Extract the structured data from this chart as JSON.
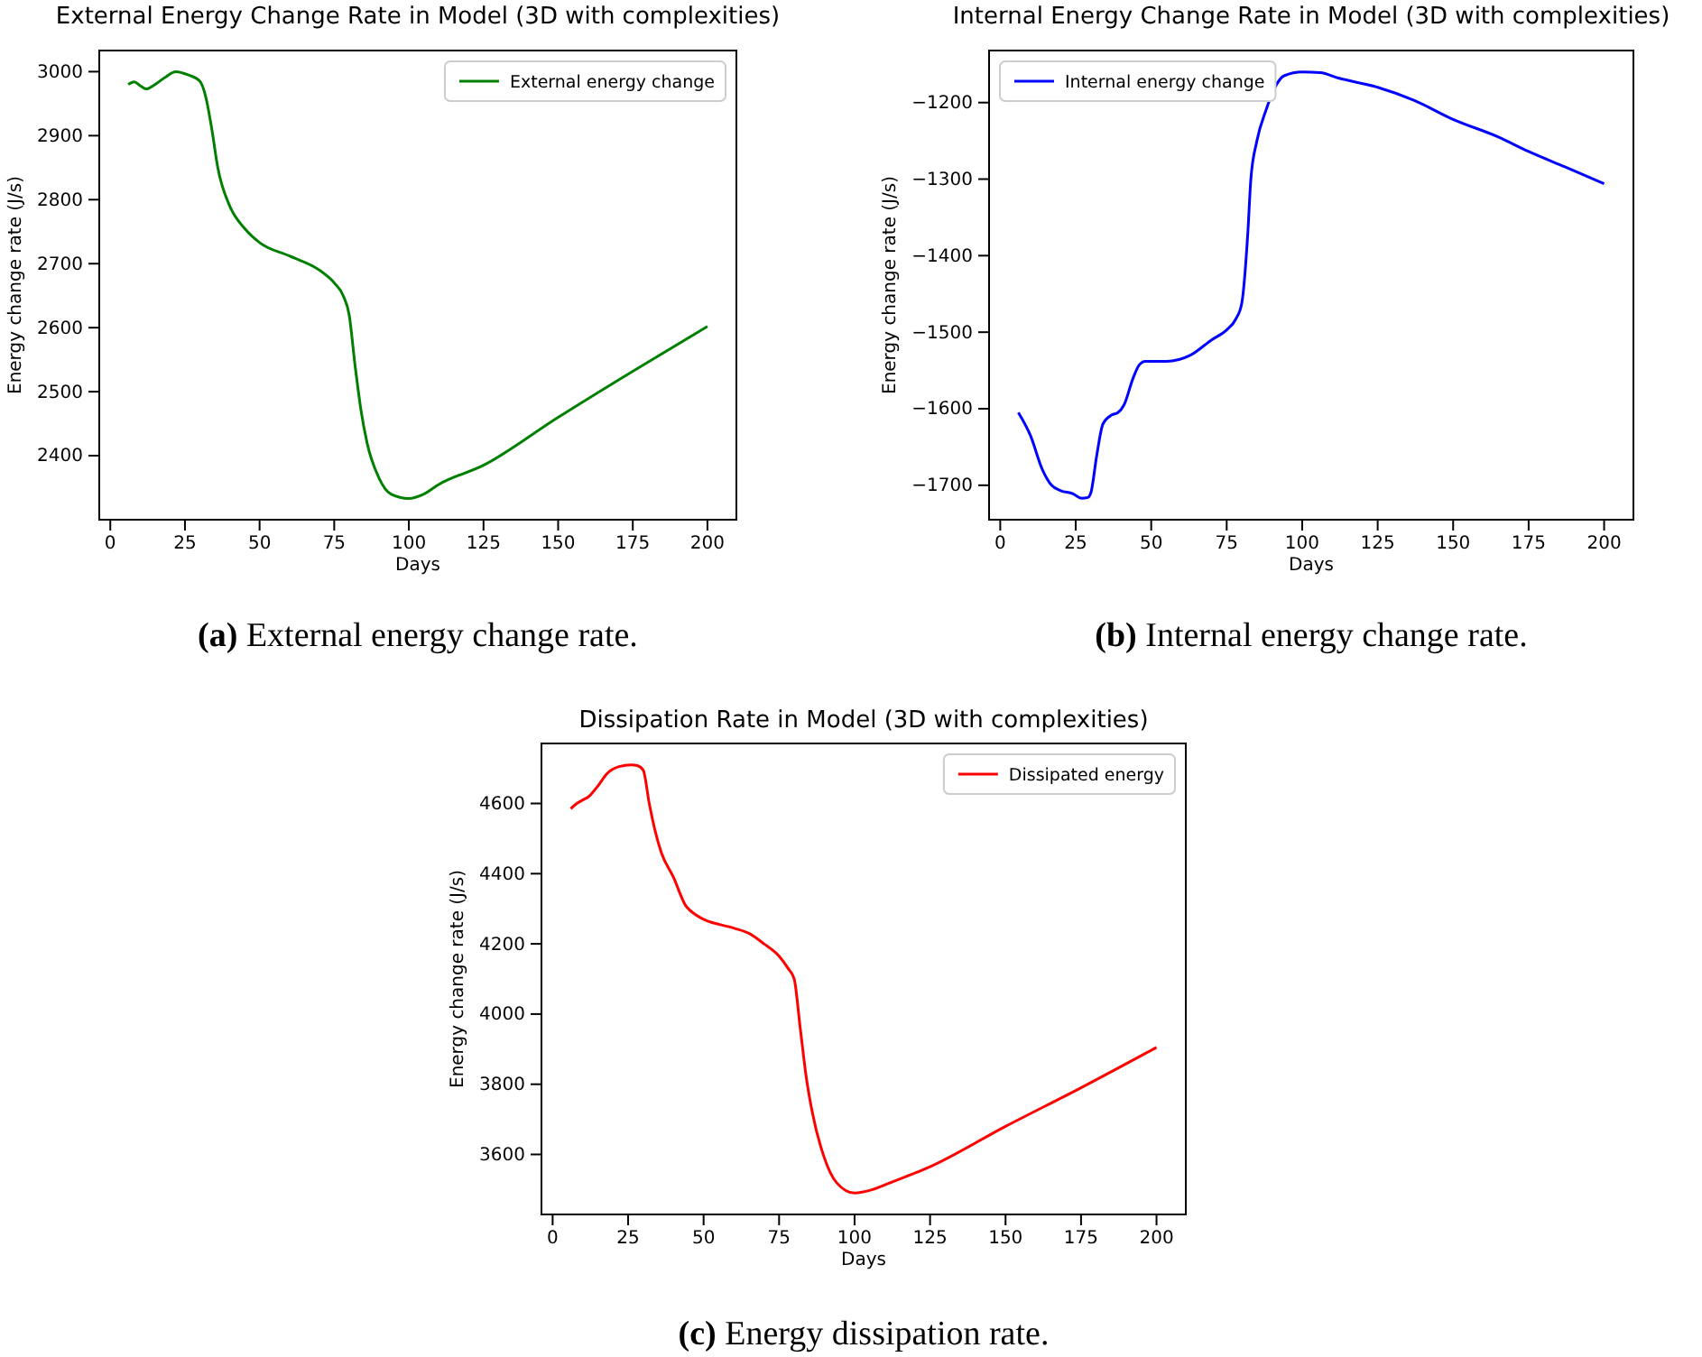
{
  "chart_data": [
    {
      "type": "line",
      "title": "External Energy Change Rate in Model (3D with complexities)",
      "xlabel": "Days",
      "ylabel": "Energy change rate (J/s)",
      "legend": "top right",
      "xlim": [
        -3.7,
        209.7
      ],
      "ylim": [
        2300,
        3033
      ],
      "xticks": [
        0,
        25,
        50,
        75,
        100,
        125,
        150,
        175,
        200
      ],
      "yticks": [
        2400,
        2500,
        2600,
        2700,
        2800,
        2900,
        3000
      ],
      "annotations": [
        "(a) External energy change rate."
      ],
      "x": [
        6,
        8,
        10,
        12,
        15,
        18,
        22,
        26,
        30,
        32,
        34,
        36,
        40,
        45,
        50,
        60,
        70,
        75,
        78,
        80,
        82,
        84,
        86,
        90,
        94,
        100,
        105,
        110,
        125,
        150,
        175,
        200
      ],
      "series": [
        {
          "name": "External energy change",
          "color": "#008000",
          "values": [
            2980,
            2984,
            2978,
            2973,
            2980,
            2990,
            3000,
            2995,
            2985,
            2960,
            2910,
            2850,
            2790,
            2755,
            2733,
            2712,
            2690,
            2670,
            2650,
            2620,
            2540,
            2470,
            2420,
            2365,
            2340,
            2333,
            2340,
            2355,
            2385,
            2460,
            2532,
            2602
          ]
        }
      ]
    },
    {
      "type": "line",
      "title": "Internal Energy Change Rate in Model (3D with complexities)",
      "xlabel": "Days",
      "ylabel": "Energy change rate (J/s)",
      "legend": "top left",
      "xlim": [
        -3.7,
        209.7
      ],
      "ylim": [
        -1745,
        -1132
      ],
      "xticks": [
        0,
        25,
        50,
        75,
        100,
        125,
        150,
        175,
        200
      ],
      "yticks": [
        {
          "value": -1700,
          "label": "−1700"
        },
        {
          "value": -1600,
          "label": "−1600"
        },
        {
          "value": -1500,
          "label": "−1500"
        },
        {
          "value": -1400,
          "label": "−1400"
        },
        {
          "value": -1300,
          "label": "−1300"
        },
        {
          "value": -1200,
          "label": "−1200"
        }
      ],
      "annotations": [
        "(b) Internal energy change rate."
      ],
      "x": [
        6,
        10,
        14,
        17,
        20,
        24,
        27,
        29,
        30,
        32,
        34,
        37,
        39,
        41,
        44,
        46,
        48,
        55,
        63,
        70,
        75,
        78,
        80,
        82,
        83,
        85,
        88,
        91,
        94,
        100,
        106,
        112,
        125,
        137,
        150,
        165,
        175,
        187,
        200
      ],
      "series": [
        {
          "name": "Internal energy change",
          "color": "#0000ff",
          "values": [
            -1605,
            -1635,
            -1680,
            -1700,
            -1707,
            -1711,
            -1717,
            -1716,
            -1710,
            -1660,
            -1620,
            -1608,
            -1605,
            -1595,
            -1560,
            -1543,
            -1538,
            -1538,
            -1530,
            -1510,
            -1497,
            -1483,
            -1462,
            -1370,
            -1300,
            -1250,
            -1210,
            -1180,
            -1165,
            -1160,
            -1161,
            -1168,
            -1180,
            -1197,
            -1222,
            -1245,
            -1264,
            -1284,
            -1306
          ]
        }
      ]
    },
    {
      "type": "line",
      "title": "Dissipation Rate in Model (3D with complexities)",
      "xlabel": "Days",
      "ylabel": "Energy change rate (J/s)",
      "legend": "top right",
      "xlim": [
        -3.7,
        209.7
      ],
      "ylim": [
        3429,
        4771
      ],
      "xticks": [
        0,
        25,
        50,
        75,
        100,
        125,
        150,
        175,
        200
      ],
      "yticks": [
        3600,
        3800,
        4000,
        4200,
        4400,
        4600
      ],
      "annotations": [
        "(c) Energy dissipation rate."
      ],
      "x": [
        6,
        8,
        10,
        12,
        15,
        18,
        22,
        26,
        28,
        30,
        32,
        34,
        36,
        40,
        44,
        47,
        50,
        60,
        65,
        70,
        75,
        78,
        80,
        82,
        84,
        86,
        90,
        94,
        100,
        106,
        112,
        125,
        150,
        175,
        200
      ],
      "series": [
        {
          "name": "Dissipated energy",
          "color": "#ff0000",
          "values": [
            4585,
            4600,
            4610,
            4620,
            4650,
            4685,
            4705,
            4710,
            4708,
            4695,
            4600,
            4520,
            4460,
            4390,
            4310,
            4285,
            4270,
            4245,
            4230,
            4200,
            4165,
            4130,
            4100,
            3960,
            3820,
            3720,
            3590,
            3520,
            3490,
            3500,
            3520,
            3565,
            3680,
            3790,
            3905
          ]
        }
      ]
    }
  ]
}
